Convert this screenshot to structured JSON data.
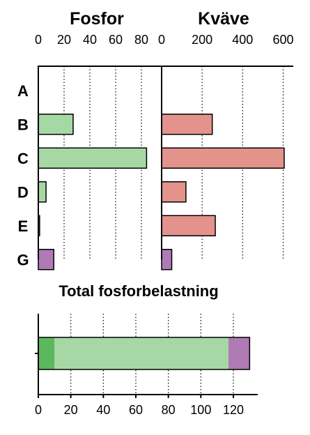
{
  "chart_data": [
    {
      "type": "bar",
      "orientation": "horizontal",
      "title": "Fosfor",
      "categories": [
        "A",
        "B",
        "C",
        "D",
        "E",
        "G"
      ],
      "values": [
        0,
        27,
        84,
        6,
        1,
        12
      ],
      "colors": [
        "#a6d8a6",
        "#a6d8a6",
        "#a6d8a6",
        "#a6d8a6",
        "#a6d8a6",
        "#b07ab4"
      ],
      "xlim": [
        0,
        100
      ],
      "xticks": [
        0,
        20,
        40,
        60,
        80
      ],
      "xtick_position": "top",
      "grid": "vertical-dotted"
    },
    {
      "type": "bar",
      "orientation": "horizontal",
      "title": "Kväve",
      "categories": [
        "A",
        "B",
        "C",
        "D",
        "E",
        "G"
      ],
      "values": [
        0,
        250,
        605,
        120,
        265,
        50
      ],
      "colors": [
        "#e4928c",
        "#e4928c",
        "#e4928c",
        "#e4928c",
        "#e4928c",
        "#b07ab4"
      ],
      "xlim": [
        0,
        650
      ],
      "xticks": [
        0,
        200,
        400,
        600
      ],
      "xtick_position": "top",
      "grid": "vertical-dotted"
    },
    {
      "type": "bar",
      "orientation": "horizontal",
      "stacked": true,
      "title": "Total fosforbelastning",
      "segments": [
        {
          "value": 10,
          "color": "#5cb85c"
        },
        {
          "value": 107,
          "color": "#a6d8a6"
        },
        {
          "value": 13,
          "color": "#b07ab4"
        }
      ],
      "xlim": [
        0,
        135
      ],
      "xticks": [
        0,
        20,
        40,
        60,
        80,
        100,
        120
      ],
      "xtick_position": "bottom",
      "grid": "vertical-dotted"
    }
  ]
}
